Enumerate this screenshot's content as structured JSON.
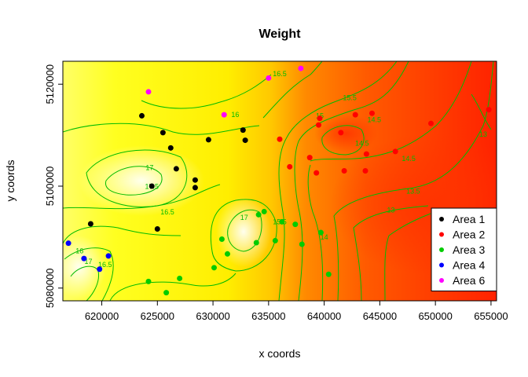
{
  "chart_data": {
    "type": "scatter",
    "title": "Weight",
    "xlabel": "x coords",
    "ylabel": "y coords",
    "xlim": [
      616500,
      655500
    ],
    "ylim": [
      5077500,
      5124500
    ],
    "x_ticks": [
      620000,
      625000,
      630000,
      635000,
      640000,
      645000,
      650000,
      655000
    ],
    "y_ticks": [
      5080000,
      5100000,
      5120000
    ],
    "background": "heat-map surface (yellow = high values, red = low values) with green contour lines",
    "contour_color": "#00bb00",
    "contour_labels": [
      {
        "text": "17",
        "x": 618800,
        "y": 5085200
      },
      {
        "text": "16.5",
        "x": 620300,
        "y": 5084600
      },
      {
        "text": "16",
        "x": 618000,
        "y": 5087300
      },
      {
        "text": "17",
        "x": 624300,
        "y": 5103600
      },
      {
        "text": "17.5",
        "x": 624500,
        "y": 5099900
      },
      {
        "text": "16.5",
        "x": 625900,
        "y": 5094900
      },
      {
        "text": "16",
        "x": 632000,
        "y": 5114000
      },
      {
        "text": "16.5",
        "x": 636000,
        "y": 5122000
      },
      {
        "text": "17",
        "x": 632800,
        "y": 5093800
      },
      {
        "text": "15.5",
        "x": 636000,
        "y": 5093000
      },
      {
        "text": "15",
        "x": 639600,
        "y": 5113800
      },
      {
        "text": "15.5",
        "x": 642300,
        "y": 5117300
      },
      {
        "text": "14.5",
        "x": 643400,
        "y": 5108400
      },
      {
        "text": "14.5",
        "x": 644500,
        "y": 5113000
      },
      {
        "text": "14.5",
        "x": 647600,
        "y": 5105400
      },
      {
        "text": "13.5",
        "x": 648000,
        "y": 5099000
      },
      {
        "text": "13",
        "x": 646000,
        "y": 5095300
      },
      {
        "text": "14",
        "x": 640000,
        "y": 5090000
      },
      {
        "text": "13",
        "x": 654300,
        "y": 5110200
      }
    ],
    "series": [
      {
        "name": "Area 1",
        "color": "#000000",
        "x": [
          623600,
          625500,
          626200,
          626700,
          629600,
          632700,
          632900,
          624500,
          628400,
          628400,
          619000,
          625000
        ],
        "y": [
          5113800,
          5110500,
          5107500,
          5103400,
          5109100,
          5111000,
          5109000,
          5100000,
          5101200,
          5099700,
          5092600,
          5091600
        ]
      },
      {
        "name": "Area 2",
        "color": "#ff0000",
        "x": [
          639600,
          639500,
          642800,
          644300,
          649600,
          654800,
          641500,
          636000,
          636900,
          638700,
          639300,
          641800,
          643800,
          646400,
          643700
        ],
        "y": [
          5113300,
          5112000,
          5114000,
          5114300,
          5112300,
          5115000,
          5110500,
          5109200,
          5103800,
          5105600,
          5102600,
          5103000,
          5106300,
          5106800,
          5103000
        ]
      },
      {
        "name": "Area 3",
        "color": "#00cc00",
        "x": [
          634100,
          634600,
          636200,
          637400,
          635600,
          630800,
          631300,
          633900,
          638000,
          639700,
          630100,
          627000,
          624200,
          625800,
          640400
        ],
        "y": [
          5094400,
          5095000,
          5093000,
          5092500,
          5089300,
          5089600,
          5086700,
          5088900,
          5088600,
          5090900,
          5084000,
          5081900,
          5081300,
          5079100,
          5082700
        ]
      },
      {
        "name": "Area 4",
        "color": "#0000ff",
        "x": [
          617000,
          618400,
          620600,
          619800
        ],
        "y": [
          5088800,
          5085800,
          5086300,
          5083700
        ]
      },
      {
        "name": "Area 6",
        "color": "#ff00ff",
        "x": [
          624200,
          635000,
          637900,
          631000
        ],
        "y": [
          5118500,
          5121200,
          5123100,
          5114000
        ]
      }
    ],
    "legend": {
      "placement": "bottom-right",
      "entries": [
        "Area 1",
        "Area 2",
        "Area 3",
        "Area 4",
        "Area 6"
      ]
    }
  }
}
